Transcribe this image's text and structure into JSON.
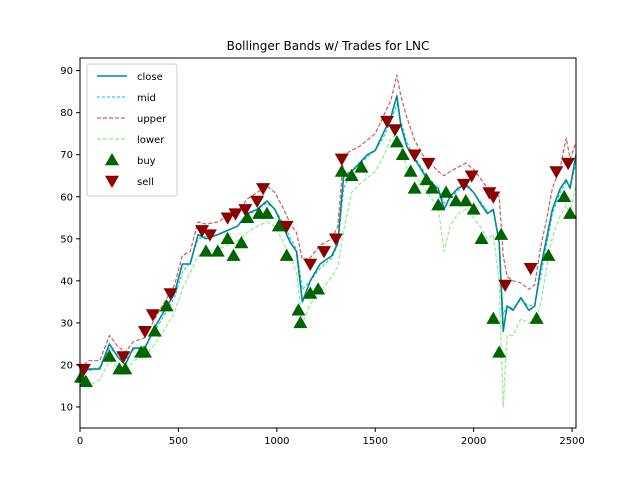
{
  "chart_data": {
    "type": "line",
    "title": "Bollinger Bands w/ Trades for LNC",
    "xlabel": "",
    "ylabel": "",
    "xlim": [
      0,
      2520
    ],
    "ylim": [
      5,
      93
    ],
    "xticks": [
      0,
      500,
      1000,
      1500,
      2000,
      2500
    ],
    "yticks": [
      10,
      20,
      30,
      40,
      50,
      60,
      70,
      80,
      90
    ],
    "grid": false,
    "legend_position": "top-left",
    "colors": {
      "close": "#008b8b",
      "mid": "#00bfff",
      "upper": "#cd5c5c",
      "lower": "#90ee90",
      "buy": "#006400",
      "sell": "#8b0000"
    },
    "x": [
      0,
      40,
      100,
      150,
      190,
      230,
      270,
      330,
      380,
      430,
      480,
      520,
      560,
      600,
      640,
      700,
      750,
      800,
      850,
      900,
      950,
      990,
      1030,
      1070,
      1100,
      1130,
      1170,
      1220,
      1280,
      1310,
      1340,
      1380,
      1420,
      1460,
      1500,
      1540,
      1580,
      1610,
      1630,
      1660,
      1700,
      1740,
      1780,
      1820,
      1850,
      1880,
      1920,
      1960,
      2000,
      2040,
      2070,
      2100,
      2130,
      2150,
      2170,
      2200,
      2240,
      2280,
      2310,
      2340,
      2370,
      2400,
      2440,
      2470,
      2490,
      2520
    ],
    "series": [
      {
        "name": "close",
        "values": [
          17,
          19,
          19,
          25,
          22,
          20,
          24,
          24,
          29,
          33,
          37,
          44,
          44,
          51,
          50,
          51,
          52,
          53,
          56,
          57,
          59,
          57,
          53,
          49,
          47,
          35,
          40,
          44,
          46,
          49,
          65,
          66,
          68,
          70,
          71,
          75,
          79,
          84,
          77,
          72,
          69,
          66,
          63,
          62,
          57,
          60,
          62,
          63,
          61,
          58,
          56,
          57,
          49,
          28,
          34,
          33,
          36,
          33,
          34,
          43,
          50,
          57,
          62,
          64,
          62,
          70
        ]
      },
      {
        "name": "mid",
        "values": [
          17.5,
          18.5,
          19.5,
          24,
          22.5,
          21,
          23.5,
          24.5,
          28,
          32,
          36,
          42,
          44.5,
          50,
          50.5,
          51,
          52,
          53,
          55.5,
          57,
          58.5,
          57,
          54,
          50,
          47.5,
          38,
          40,
          43,
          45.5,
          48.5,
          62,
          66,
          67.5,
          69.5,
          71,
          74,
          78,
          82,
          78,
          73,
          69.5,
          66.5,
          64,
          62,
          58.5,
          59.5,
          61.5,
          62.5,
          61,
          58.5,
          56.5,
          56.5,
          50,
          32,
          34,
          33.5,
          35.5,
          34,
          34.5,
          41,
          48.5,
          56,
          61,
          63.5,
          62.5,
          68
        ]
      },
      {
        "name": "upper",
        "values": [
          19,
          21,
          21,
          27,
          24.5,
          23,
          25.5,
          26.5,
          31,
          35,
          39,
          46,
          47,
          54,
          53.5,
          54,
          55.5,
          56.5,
          59.5,
          61,
          62.5,
          61,
          57.5,
          53.5,
          51.5,
          45,
          45.5,
          48.5,
          50,
          53,
          70,
          71,
          72,
          73.5,
          75,
          79,
          83,
          89,
          84,
          79,
          73.5,
          70,
          68,
          66,
          65,
          66,
          67,
          68,
          66.5,
          64,
          62,
          61.5,
          60,
          46,
          41,
          40,
          39.5,
          38,
          39,
          48,
          54.5,
          62,
          67,
          74,
          69,
          73
        ]
      },
      {
        "name": "lower",
        "values": [
          15,
          15,
          16.5,
          21,
          19.5,
          18,
          21,
          22,
          25,
          28.5,
          32.5,
          38,
          42,
          46,
          47,
          47.5,
          48.5,
          49.5,
          51.5,
          53,
          54,
          53,
          49.5,
          45.5,
          42,
          30,
          34.5,
          37.5,
          41,
          43.5,
          52,
          61,
          63,
          64.5,
          66,
          69.5,
          74,
          74.5,
          72,
          67,
          65,
          63,
          60,
          57.5,
          47,
          53,
          56,
          57,
          55,
          52.5,
          50,
          51,
          40,
          10,
          27,
          27,
          31,
          30,
          30,
          34.5,
          43,
          50.5,
          55.5,
          58,
          56,
          63
        ]
      }
    ],
    "buy": {
      "x": [
        5,
        30,
        150,
        200,
        230,
        310,
        330,
        380,
        440,
        640,
        700,
        750,
        780,
        820,
        850,
        910,
        950,
        1010,
        1050,
        1110,
        1120,
        1170,
        1210,
        1330,
        1380,
        1430,
        1610,
        1640,
        1680,
        1700,
        1760,
        1790,
        1820,
        1860,
        1910,
        1960,
        2000,
        2040,
        2100,
        2130,
        2140,
        2320,
        2380,
        2460,
        2490
      ],
      "y": [
        17,
        16,
        22,
        19,
        19,
        23,
        23,
        28,
        34,
        47,
        47,
        50,
        46,
        49,
        55,
        56,
        56,
        53,
        46,
        33,
        30,
        37,
        38,
        66,
        65,
        67,
        73,
        70,
        66,
        62,
        64,
        62,
        58,
        61,
        59,
        59,
        57,
        50,
        31,
        23,
        51,
        31,
        46,
        60,
        56
      ]
    },
    "sell": {
      "x": [
        20,
        220,
        330,
        370,
        460,
        620,
        660,
        750,
        790,
        840,
        900,
        930,
        1050,
        1170,
        1240,
        1300,
        1330,
        1560,
        1600,
        1700,
        1770,
        1950,
        1990,
        2080,
        2100,
        2160,
        2290,
        2420,
        2480
      ],
      "y": [
        19,
        22,
        28,
        32,
        37,
        52,
        51,
        55,
        56,
        57,
        59,
        62,
        53,
        44,
        47,
        50,
        69,
        78,
        76,
        70,
        68,
        63,
        65,
        61,
        60,
        39,
        43,
        66,
        68
      ]
    },
    "legend": [
      "close",
      "mid",
      "upper",
      "lower",
      "buy",
      "sell"
    ]
  }
}
